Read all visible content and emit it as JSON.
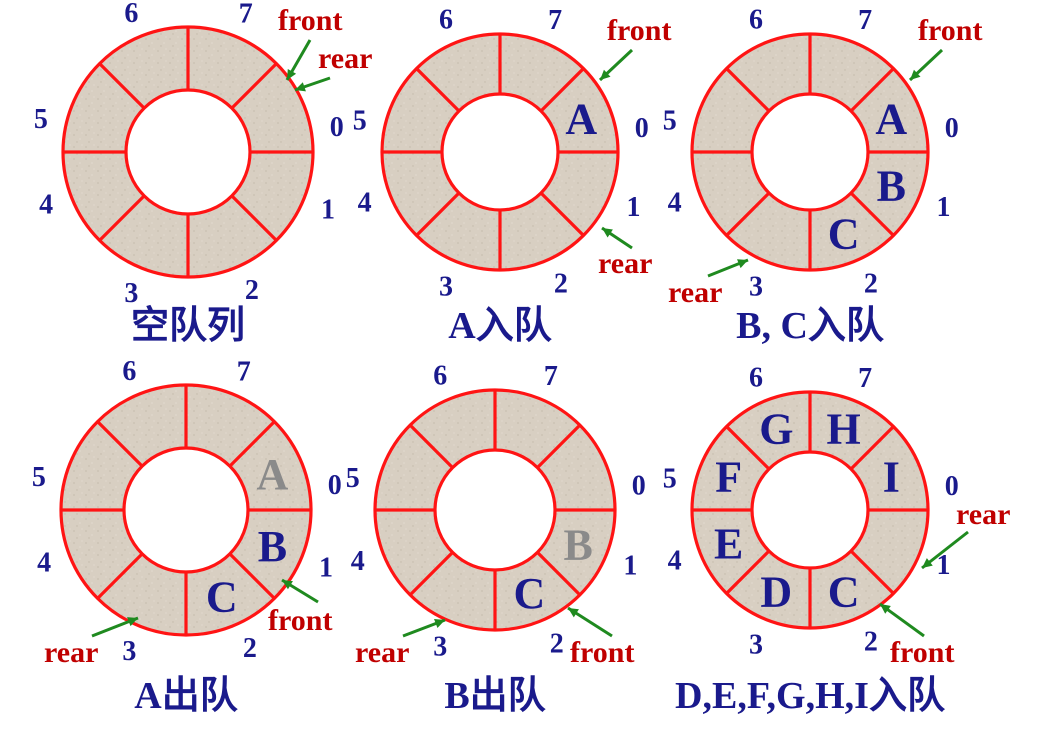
{
  "colors": {
    "ring": "#ff1414",
    "fill": "#d8cfc2",
    "index": "#1a1a8c",
    "element": "#1a1a8c",
    "dequeued": "#8a8a8a",
    "pointer_label": "#c00000",
    "arrow": "#1f8a1f"
  },
  "panels": [
    {
      "caption": "空队列",
      "slot_indices": [
        "0",
        "1",
        "2",
        "3",
        "4",
        "5",
        "6",
        "7"
      ],
      "elements": [],
      "pointers": [
        {
          "label": "front",
          "target_slot": 0
        },
        {
          "label": "rear",
          "target_slot": 0
        }
      ]
    },
    {
      "caption": "A入队",
      "slot_indices": [
        "0",
        "1",
        "2",
        "3",
        "4",
        "5",
        "6",
        "7"
      ],
      "elements": [
        {
          "slot": 0,
          "text": "A",
          "state": "present"
        }
      ],
      "pointers": [
        {
          "label": "front",
          "target_slot": 0
        },
        {
          "label": "rear",
          "target_slot": 1
        }
      ]
    },
    {
      "caption": "B, C入队",
      "slot_indices": [
        "0",
        "1",
        "2",
        "3",
        "4",
        "5",
        "6",
        "7"
      ],
      "elements": [
        {
          "slot": 0,
          "text": "A",
          "state": "present"
        },
        {
          "slot": 1,
          "text": "B",
          "state": "present"
        },
        {
          "slot": 2,
          "text": "C",
          "state": "present"
        }
      ],
      "pointers": [
        {
          "label": "front",
          "target_slot": 0
        },
        {
          "label": "rear",
          "target_slot": 3
        }
      ]
    },
    {
      "caption": "A出队",
      "slot_indices": [
        "0",
        "1",
        "2",
        "3",
        "4",
        "5",
        "6",
        "7"
      ],
      "elements": [
        {
          "slot": 0,
          "text": "A",
          "state": "dequeued"
        },
        {
          "slot": 1,
          "text": "B",
          "state": "present"
        },
        {
          "slot": 2,
          "text": "C",
          "state": "present"
        }
      ],
      "pointers": [
        {
          "label": "front",
          "target_slot": 1
        },
        {
          "label": "rear",
          "target_slot": 3
        }
      ]
    },
    {
      "caption": "B出队",
      "slot_indices": [
        "0",
        "1",
        "2",
        "3",
        "4",
        "5",
        "6",
        "7"
      ],
      "elements": [
        {
          "slot": 1,
          "text": "B",
          "state": "dequeued"
        },
        {
          "slot": 2,
          "text": "C",
          "state": "present"
        }
      ],
      "pointers": [
        {
          "label": "front",
          "target_slot": 2
        },
        {
          "label": "rear",
          "target_slot": 3
        }
      ]
    },
    {
      "caption": "D,E,F,G,H,I入队",
      "slot_indices": [
        "0",
        "1",
        "2",
        "3",
        "4",
        "5",
        "6",
        "7"
      ],
      "elements": [
        {
          "slot": 2,
          "text": "C",
          "state": "present"
        },
        {
          "slot": 3,
          "text": "D",
          "state": "present"
        },
        {
          "slot": 4,
          "text": "E",
          "state": "present"
        },
        {
          "slot": 5,
          "text": "F",
          "state": "present"
        },
        {
          "slot": 6,
          "text": "G",
          "state": "present"
        },
        {
          "slot": 7,
          "text": "H",
          "state": "present"
        },
        {
          "slot": 0,
          "text": "I",
          "state": "present"
        }
      ],
      "pointers": [
        {
          "label": "rear",
          "target_slot": 1
        },
        {
          "label": "front",
          "target_slot": 2
        }
      ]
    }
  ]
}
